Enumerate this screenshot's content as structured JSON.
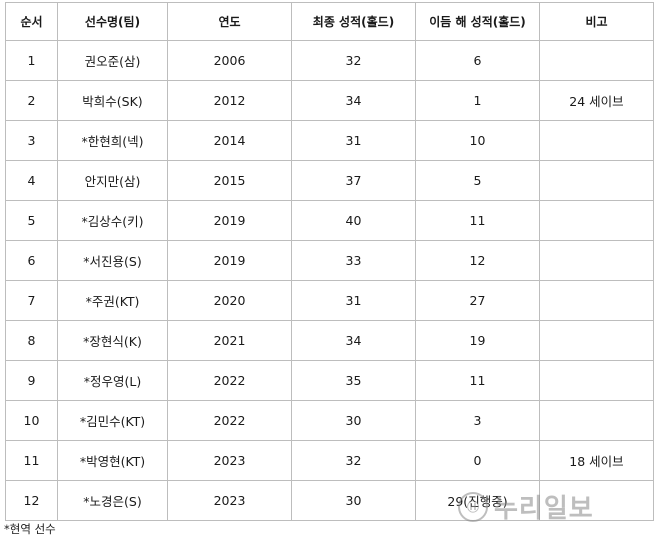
{
  "table": {
    "headers": [
      "순서",
      "선수명(팀)",
      "연도",
      "최종 성적(홀드)",
      "이듬 해 성적(홀드)",
      "비고"
    ],
    "rows": [
      [
        "1",
        "권오준(삼)",
        "2006",
        "32",
        "6",
        ""
      ],
      [
        "2",
        "박희수(SK)",
        "2012",
        "34",
        "1",
        "24 세이브"
      ],
      [
        "3",
        "*한현희(넥)",
        "2014",
        "31",
        "10",
        ""
      ],
      [
        "4",
        "안지만(삼)",
        "2015",
        "37",
        "5",
        ""
      ],
      [
        "5",
        "*김상수(키)",
        "2019",
        "40",
        "11",
        ""
      ],
      [
        "6",
        "*서진용(S)",
        "2019",
        "33",
        "12",
        ""
      ],
      [
        "7",
        "*주권(KT)",
        "2020",
        "31",
        "27",
        ""
      ],
      [
        "8",
        "*장현식(K)",
        "2021",
        "34",
        "19",
        ""
      ],
      [
        "9",
        "*정우영(L)",
        "2022",
        "35",
        "11",
        ""
      ],
      [
        "10",
        "*김민수(KT)",
        "2022",
        "30",
        "3",
        ""
      ],
      [
        "11",
        "*박영현(KT)",
        "2023",
        "32",
        "0",
        "18 세이브"
      ],
      [
        "12",
        "*노경은(S)",
        "2023",
        "30",
        "29(진행중)",
        ""
      ]
    ]
  },
  "footnote": "*현역 선수",
  "watermark": {
    "logo_icon": "hankook-ilbo-logo-icon",
    "text": "누리일보"
  }
}
